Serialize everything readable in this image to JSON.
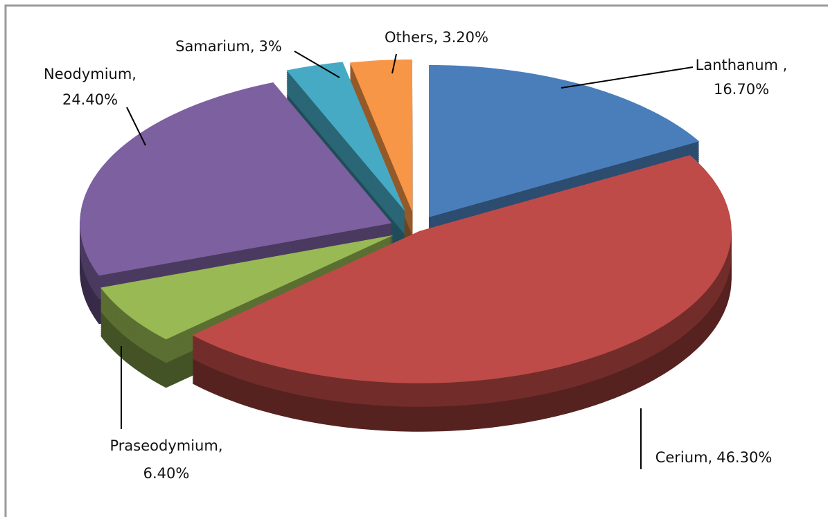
{
  "chart_data": {
    "type": "pie3d",
    "categories": [
      "Lanthanum ,",
      "Cerium,",
      "Praseodymium,",
      "Neodymium,",
      "Samarium,",
      "Others,"
    ],
    "values": [
      16.7,
      46.3,
      6.4,
      24.4,
      3,
      3.2
    ],
    "value_labels": [
      "16.70%",
      "46.30%",
      "6.40%",
      "24.40%",
      "3%",
      "3.20%"
    ],
    "colors": [
      "#4a7ebb",
      "#be4b48",
      "#98b954",
      "#7d60a0",
      "#46aac5",
      "#f79646"
    ]
  }
}
